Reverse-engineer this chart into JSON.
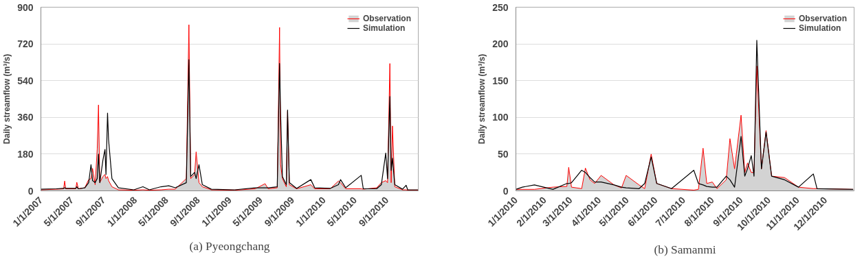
{
  "chart_data": [
    {
      "type": "area",
      "ylabel": "Daily streamflow (m³/s)",
      "annotations": [
        "(a) Pyeongchang"
      ],
      "xlim": [
        "2007-01-01",
        "2011-01-01"
      ],
      "ylim": [
        0,
        900
      ],
      "yticks": [
        0,
        180,
        360,
        540,
        720,
        900
      ],
      "xticks": [
        {
          "value": "2007-01-01",
          "label": "1/1/2007"
        },
        {
          "value": "2007-05-01",
          "label": "5/1/2007"
        },
        {
          "value": "2007-09-01",
          "label": "9/1/2007"
        },
        {
          "value": "2008-01-01",
          "label": "1/1/2008"
        },
        {
          "value": "2008-05-01",
          "label": "5/1/2008"
        },
        {
          "value": "2008-09-01",
          "label": "9/1/2008"
        },
        {
          "value": "2009-01-01",
          "label": "1/1/2009"
        },
        {
          "value": "2009-05-01",
          "label": "5/1/2009"
        },
        {
          "value": "2009-09-01",
          "label": "9/1/2009"
        },
        {
          "value": "2010-01-01",
          "label": "1/1/2010"
        },
        {
          "value": "2010-05-01",
          "label": "5/1/2010"
        },
        {
          "value": "2010-09-01",
          "label": "9/1/2010"
        }
      ],
      "grid": "y",
      "legend": "top right",
      "marker": "none",
      "x": [
        "2007-01-01",
        "2007-03-02",
        "2007-03-30",
        "2007-04-03",
        "2007-04-07",
        "2007-05-16",
        "2007-05-20",
        "2007-05-26",
        "2007-06-20",
        "2007-07-05",
        "2007-07-14",
        "2007-07-20",
        "2007-07-30",
        "2007-08-07",
        "2007-08-12",
        "2007-08-17",
        "2007-08-29",
        "2007-09-06",
        "2007-09-10",
        "2007-09-16",
        "2007-09-20",
        "2007-10-03",
        "2007-10-28",
        "2007-12-27",
        "2008-01-31",
        "2008-02-25",
        "2008-04-10",
        "2008-05-10",
        "2008-06-04",
        "2008-07-17",
        "2008-07-27",
        "2008-08-03",
        "2008-08-18",
        "2008-08-24",
        "2008-09-04",
        "2008-09-17",
        "2008-10-22",
        "2009-01-20",
        "2009-04-10",
        "2009-05-18",
        "2009-05-30",
        "2009-07-04",
        "2009-07-13",
        "2009-07-17",
        "2009-07-24",
        "2009-08-08",
        "2009-08-13",
        "2009-08-20",
        "2009-09-17",
        "2009-11-11",
        "2009-11-26",
        "2010-01-25",
        "2010-02-26",
        "2010-03-06",
        "2010-03-26",
        "2010-05-25",
        "2010-06-02",
        "2010-07-24",
        "2010-08-11",
        "2010-08-28",
        "2010-09-04",
        "2010-09-13",
        "2010-09-18",
        "2010-09-23",
        "2010-10-02",
        "2010-11-01",
        "2010-11-15",
        "2010-11-21",
        "2010-12-31"
      ],
      "series": [
        {
          "name": "Observation",
          "color": "#ff0000",
          "values": [
            5,
            8,
            10,
            48,
            10,
            10,
            42,
            10,
            15,
            55,
            60,
            110,
            30,
            204,
            421,
            40,
            70,
            80,
            60,
            70,
            50,
            20,
            5,
            3,
            5,
            3,
            5,
            8,
            8,
            60,
            814,
            60,
            80,
            191,
            40,
            20,
            5,
            3,
            10,
            35,
            10,
            15,
            801,
            130,
            60,
            20,
            390,
            30,
            10,
            30,
            10,
            10,
            48,
            40,
            10,
            10,
            8,
            15,
            40,
            50,
            40,
            624,
            40,
            318,
            20,
            5,
            5,
            3,
            3
          ]
        },
        {
          "name": "Simulation",
          "type": "line",
          "color": "#000000",
          "values": [
            8,
            10,
            12,
            15,
            12,
            12,
            20,
            10,
            15,
            40,
            128,
            50,
            40,
            60,
            180,
            40,
            150,
            203,
            80,
            381,
            250,
            60,
            15,
            5,
            20,
            5,
            20,
            25,
            15,
            40,
            643,
            70,
            90,
            60,
            128,
            30,
            8,
            5,
            15,
            15,
            15,
            20,
            624,
            377,
            70,
            30,
            396,
            40,
            12,
            55,
            15,
            12,
            30,
            55,
            15,
            76,
            10,
            10,
            30,
            185,
            60,
            462,
            100,
            160,
            30,
            8,
            27,
            5,
            5
          ]
        }
      ]
    },
    {
      "type": "area",
      "ylabel": "Daily streamflow (m³/s)",
      "annotations": [
        "(b) Samanmi"
      ],
      "xlim": [
        "2010-01-01",
        "2011-01-01"
      ],
      "ylim": [
        0,
        250
      ],
      "yticks": [
        0,
        50,
        100,
        150,
        200,
        250
      ],
      "xticks": [
        {
          "value": "2010-01-01",
          "label": "1/1/2010"
        },
        {
          "value": "2010-02-01",
          "label": "2/1/2010"
        },
        {
          "value": "2010-03-01",
          "label": "3/1/2010"
        },
        {
          "value": "2010-04-01",
          "label": "4/1/2010"
        },
        {
          "value": "2010-05-01",
          "label": "5/1/2010"
        },
        {
          "value": "2010-06-01",
          "label": "6/1/2010"
        },
        {
          "value": "2010-07-01",
          "label": "7/1/2010"
        },
        {
          "value": "2010-08-01",
          "label": "8/1/2010"
        },
        {
          "value": "2010-09-01",
          "label": "9/1/2010"
        },
        {
          "value": "2010-10-01",
          "label": "10/1/2010"
        },
        {
          "value": "2010-11-01",
          "label": "11/1/2010"
        },
        {
          "value": "2010-12-01",
          "label": "12/1/2010"
        }
      ],
      "grid": "y",
      "legend": "top right",
      "marker": "none",
      "x": [
        "2010-01-01",
        "2010-01-08",
        "2010-01-21",
        "2010-02-10",
        "2010-02-25",
        "2010-02-27",
        "2010-03-02",
        "2010-03-13",
        "2010-03-17",
        "2010-03-22",
        "2010-03-27",
        "2010-04-03",
        "2010-04-17",
        "2010-04-25",
        "2010-04-30",
        "2010-05-14",
        "2010-05-20",
        "2010-05-27",
        "2010-06-02",
        "2010-06-18",
        "2010-07-12",
        "2010-07-17",
        "2010-07-22",
        "2010-07-26",
        "2010-08-01",
        "2010-08-06",
        "2010-08-16",
        "2010-08-20",
        "2010-08-25",
        "2010-09-01",
        "2010-09-05",
        "2010-09-08",
        "2010-09-12",
        "2010-09-15",
        "2010-09-18",
        "2010-09-23",
        "2010-09-28",
        "2010-10-04",
        "2010-10-18",
        "2010-11-02",
        "2010-11-18",
        "2010-11-22",
        "2010-12-31"
      ],
      "series": [
        {
          "name": "Observation",
          "color": "#ff0000",
          "values": [
            2,
            2,
            2,
            5,
            6,
            32,
            5,
            3,
            31,
            15,
            10,
            21,
            8,
            4,
            21,
            8,
            3,
            50,
            10,
            3,
            1,
            2,
            58,
            10,
            12,
            3,
            15,
            71,
            30,
            103,
            25,
            38,
            25,
            25,
            170,
            30,
            82,
            20,
            18,
            5,
            3,
            3,
            2
          ]
        },
        {
          "name": "Simulation",
          "type": "line",
          "color": "#000000",
          "values": [
            2,
            5,
            8,
            2,
            10,
            10,
            11,
            28,
            25,
            18,
            12,
            12,
            8,
            5,
            4,
            3,
            10,
            46,
            10,
            3,
            28,
            10,
            8,
            6,
            5,
            5,
            20,
            15,
            5,
            74,
            20,
            30,
            48,
            20,
            205,
            30,
            80,
            20,
            15,
            5,
            23,
            3,
            2
          ]
        }
      ]
    }
  ]
}
